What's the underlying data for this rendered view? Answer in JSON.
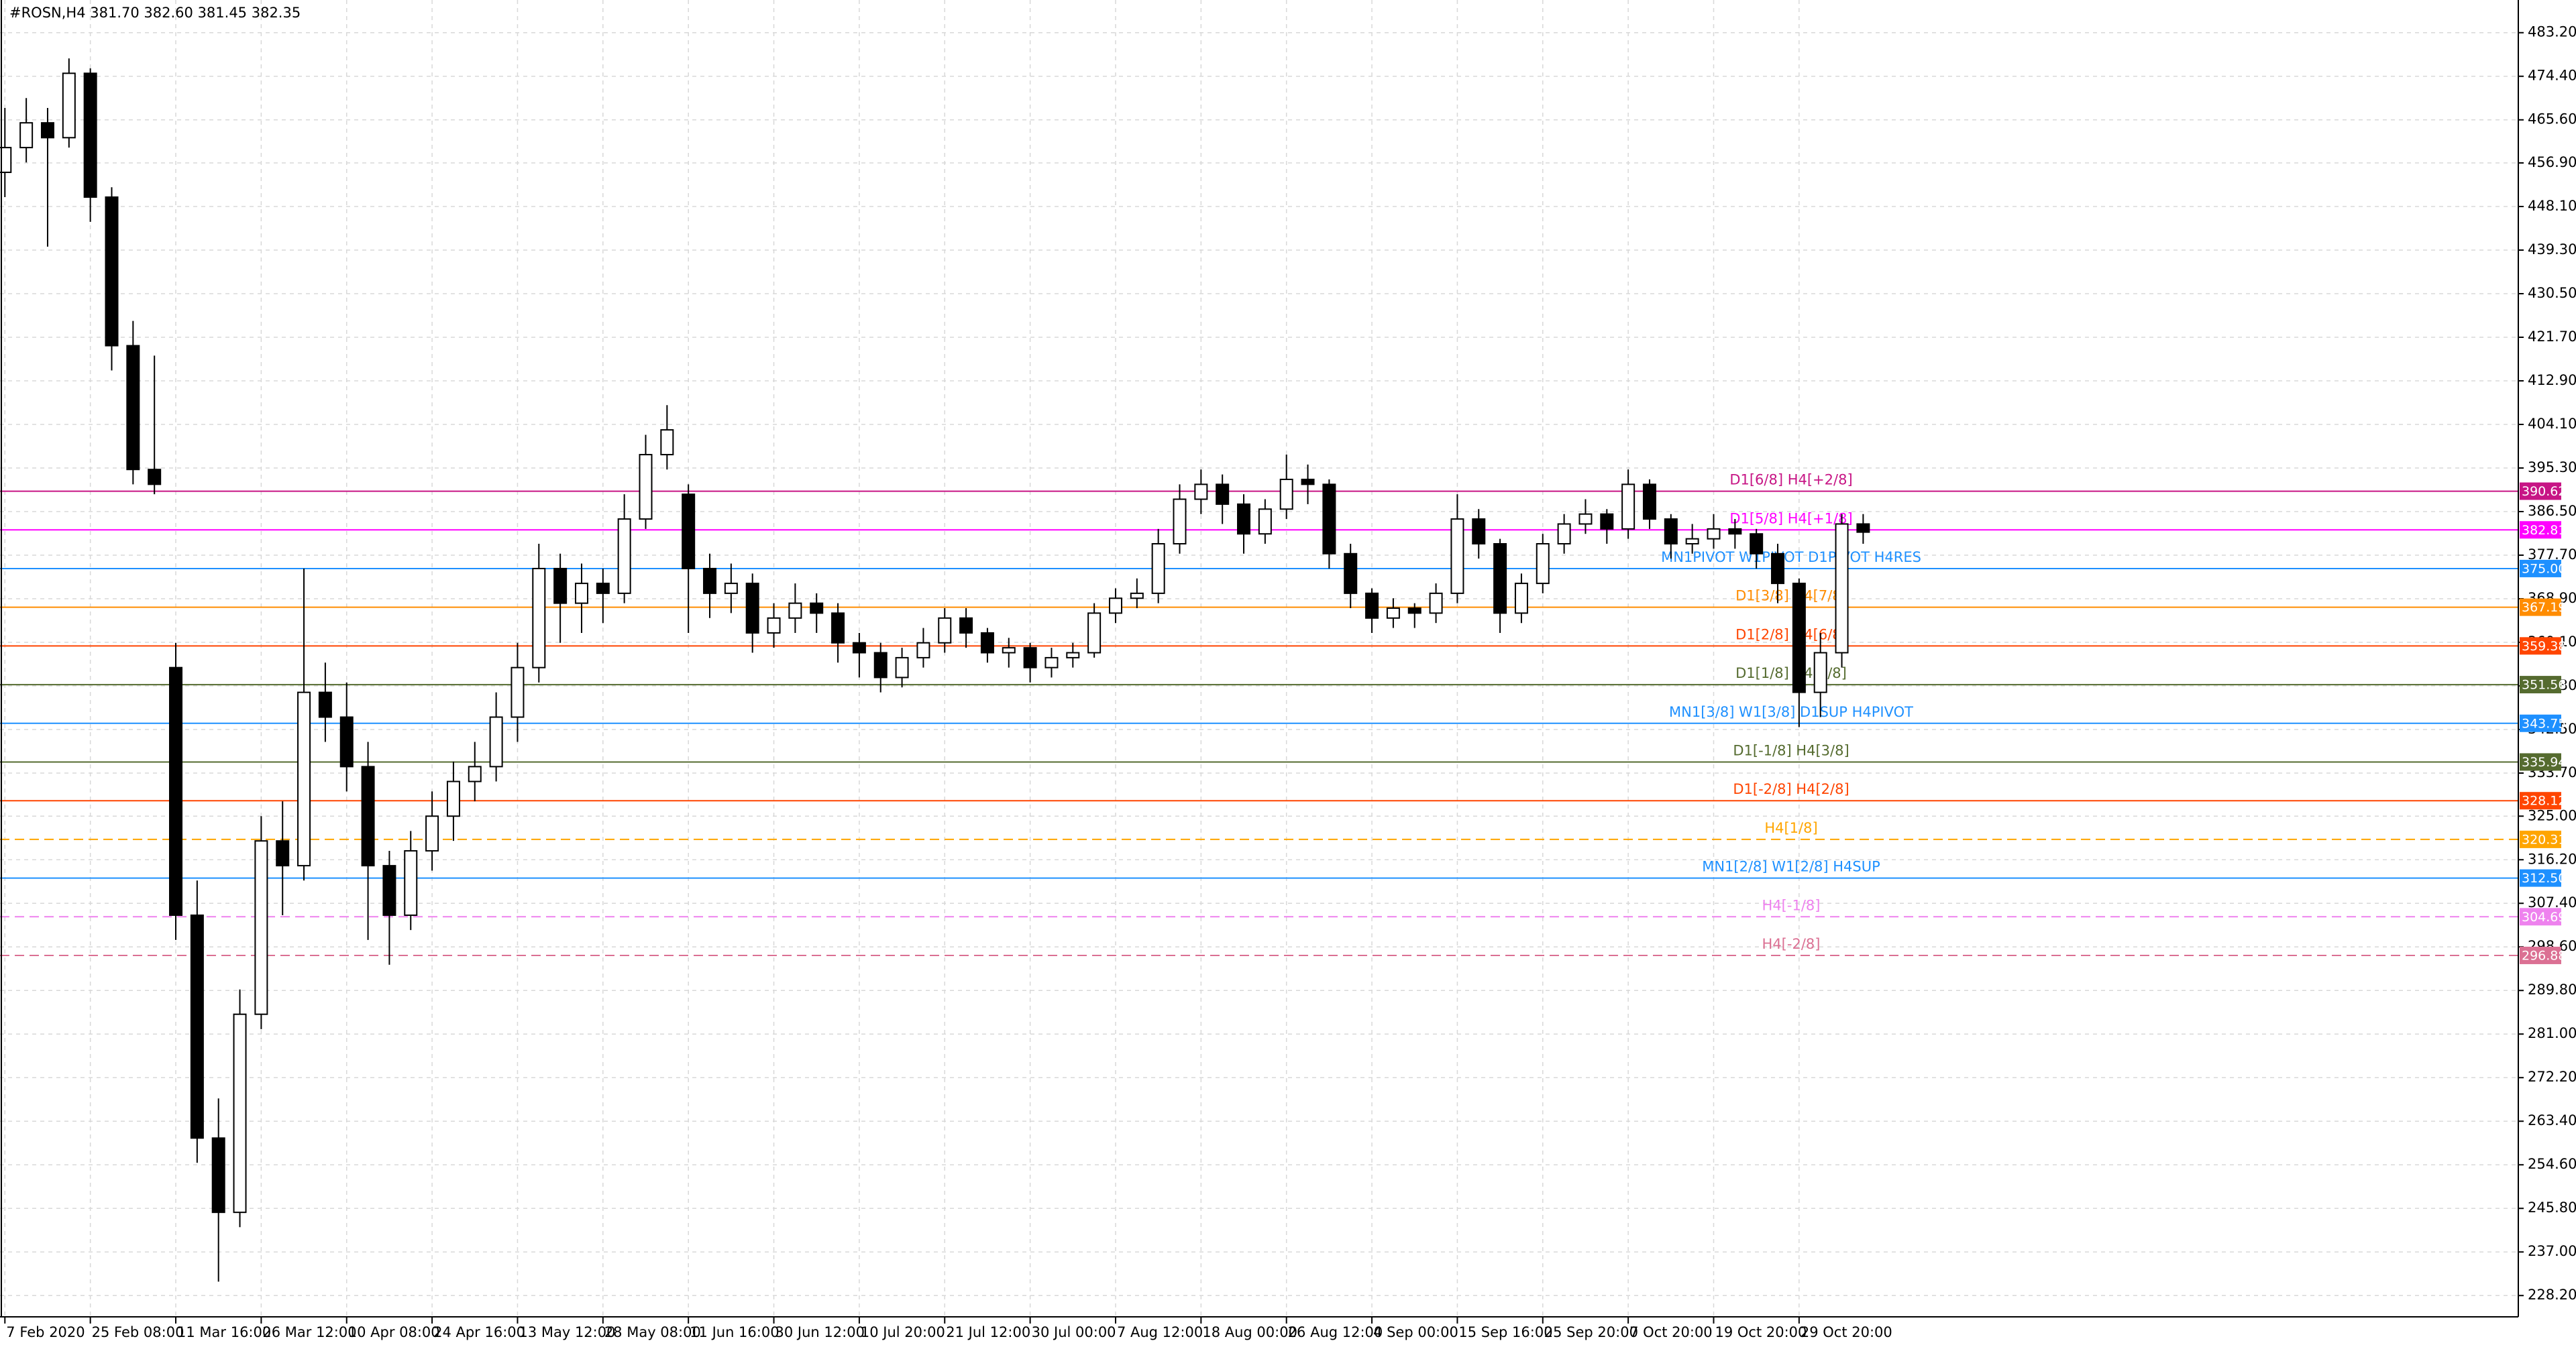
{
  "chart_data": {
    "type": "candlestick",
    "title": "#ROSN,H4  381.70 382.60 381.45 382.35",
    "categories": [
      "7 Feb 2020",
      null,
      null,
      null,
      "25 Feb 08:00",
      null,
      null,
      null,
      "11 Mar 16:00",
      null,
      null,
      null,
      "26 Mar 12:00",
      null,
      null,
      null,
      "10 Apr 08:00",
      null,
      null,
      null,
      "24 Apr 16:00",
      null,
      null,
      null,
      "13 May 12:00",
      null,
      null,
      null,
      "28 May 08:00",
      null,
      null,
      null,
      "11 Jun 16:00",
      null,
      null,
      null,
      "30 Jun 12:00",
      null,
      null,
      null,
      "10 Jul 20:00",
      null,
      null,
      null,
      "21 Jul 12:00",
      null,
      null,
      null,
      "30 Jul 00:00",
      null,
      null,
      null,
      "7 Aug 12:00",
      null,
      null,
      null,
      "18 Aug 00:00",
      null,
      null,
      null,
      "26 Aug 12:00",
      null,
      null,
      null,
      "4 Sep 00:00",
      null,
      null,
      null,
      "15 Sep 16:00",
      null,
      null,
      null,
      "25 Sep 20:00",
      null,
      null,
      null,
      "7 Oct 20:00",
      null,
      null,
      null,
      "19 Oct 20:00",
      null,
      null,
      null,
      "29 Oct 20:00",
      null,
      null,
      null
    ],
    "candles": [
      [
        455,
        468,
        450,
        460
      ],
      [
        460,
        470,
        457,
        465
      ],
      [
        465,
        468,
        440,
        462
      ],
      [
        462,
        478,
        460,
        475
      ],
      [
        475,
        476,
        445,
        450
      ],
      [
        450,
        452,
        415,
        420
      ],
      [
        420,
        425,
        392,
        395
      ],
      [
        395,
        418,
        390,
        392
      ],
      [
        355,
        360,
        300,
        305
      ],
      [
        305,
        312,
        255,
        260
      ],
      [
        260,
        268,
        231,
        245
      ],
      [
        245,
        290,
        242,
        285
      ],
      [
        285,
        325,
        282,
        320
      ],
      [
        320,
        328,
        305,
        315
      ],
      [
        315,
        375,
        312,
        350
      ],
      [
        350,
        356,
        340,
        345
      ],
      [
        345,
        352,
        330,
        335
      ],
      [
        335,
        340,
        300,
        315
      ],
      [
        315,
        318,
        295,
        305
      ],
      [
        305,
        322,
        302,
        318
      ],
      [
        318,
        330,
        314,
        325
      ],
      [
        325,
        336,
        320,
        332
      ],
      [
        332,
        340,
        328,
        335
      ],
      [
        335,
        350,
        332,
        345
      ],
      [
        345,
        360,
        340,
        355
      ],
      [
        355,
        380,
        352,
        375
      ],
      [
        375,
        378,
        360,
        368
      ],
      [
        368,
        376,
        362,
        372
      ],
      [
        372,
        375,
        364,
        370
      ],
      [
        370,
        390,
        368,
        385
      ],
      [
        385,
        402,
        383,
        398
      ],
      [
        398,
        408,
        395,
        403
      ],
      [
        390,
        392,
        362,
        375
      ],
      [
        375,
        378,
        365,
        370
      ],
      [
        370,
        376,
        366,
        372
      ],
      [
        372,
        374,
        358,
        362
      ],
      [
        362,
        368,
        359,
        365
      ],
      [
        365,
        372,
        362,
        368
      ],
      [
        368,
        370,
        362,
        366
      ],
      [
        366,
        368,
        356,
        360
      ],
      [
        360,
        362,
        353,
        358
      ],
      [
        358,
        360,
        350,
        353
      ],
      [
        353,
        359,
        351,
        357
      ],
      [
        357,
        363,
        355,
        360
      ],
      [
        360,
        367,
        358,
        365
      ],
      [
        365,
        367,
        359,
        362
      ],
      [
        362,
        363,
        356,
        358
      ],
      [
        358,
        361,
        355,
        359
      ],
      [
        359,
        360,
        352,
        355
      ],
      [
        355,
        359,
        353,
        357
      ],
      [
        357,
        360,
        355,
        358
      ],
      [
        358,
        368,
        357,
        366
      ],
      [
        366,
        371,
        364,
        369
      ],
      [
        369,
        373,
        367,
        370
      ],
      [
        370,
        383,
        368,
        380
      ],
      [
        380,
        392,
        378,
        389
      ],
      [
        389,
        395,
        386,
        392
      ],
      [
        392,
        394,
        384,
        388
      ],
      [
        388,
        390,
        378,
        382
      ],
      [
        382,
        389,
        380,
        387
      ],
      [
        387,
        398,
        385,
        393
      ],
      [
        393,
        396,
        388,
        392
      ],
      [
        392,
        393,
        375,
        378
      ],
      [
        378,
        380,
        367,
        370
      ],
      [
        370,
        371,
        362,
        365
      ],
      [
        365,
        369,
        363,
        367
      ],
      [
        367,
        368,
        363,
        366
      ],
      [
        366,
        372,
        364,
        370
      ],
      [
        370,
        390,
        368,
        385
      ],
      [
        385,
        387,
        377,
        380
      ],
      [
        380,
        381,
        362,
        366
      ],
      [
        366,
        374,
        364,
        372
      ],
      [
        372,
        382,
        370,
        380
      ],
      [
        380,
        386,
        378,
        384
      ],
      [
        384,
        389,
        382,
        386
      ],
      [
        386,
        387,
        380,
        383
      ],
      [
        383,
        395,
        381,
        392
      ],
      [
        392,
        393,
        383,
        385
      ],
      [
        385,
        386,
        377,
        380
      ],
      [
        380,
        384,
        378,
        381
      ],
      [
        381,
        386,
        379,
        383
      ],
      [
        383,
        385,
        379,
        382
      ],
      [
        382,
        383,
        375,
        378
      ],
      [
        378,
        380,
        368,
        372
      ],
      [
        372,
        373,
        343,
        350
      ],
      [
        350,
        362,
        345,
        358
      ],
      [
        358,
        386,
        355,
        384
      ],
      [
        384,
        386,
        380,
        382.35
      ]
    ],
    "up_color": "#ffffff",
    "down_color": "#000000",
    "ylim": [
      223.9,
      489.8
    ],
    "yticks": [
      {
        "value": 483.2,
        "label": "483.20"
      },
      {
        "value": 474.4,
        "label": "474.40"
      },
      {
        "value": 465.6,
        "label": "465.60"
      },
      {
        "value": 456.9,
        "label": "456.90"
      },
      {
        "value": 448.1,
        "label": "448.10"
      },
      {
        "value": 439.3,
        "label": "439.30"
      },
      {
        "value": 430.5,
        "label": "430.50"
      },
      {
        "value": 421.7,
        "label": "421.70"
      },
      {
        "value": 412.9,
        "label": "412.90"
      },
      {
        "value": 404.1,
        "label": "404.10"
      },
      {
        "value": 395.3,
        "label": "395.30"
      },
      {
        "value": 386.5,
        "label": "386.50"
      },
      {
        "value": 377.7,
        "label": "377.70"
      },
      {
        "value": 368.9,
        "label": "368.90"
      },
      {
        "value": 360.1,
        "label": "360.10"
      },
      {
        "value": 351.3,
        "label": "351.30"
      },
      {
        "value": 342.5,
        "label": "342.50"
      },
      {
        "value": 333.7,
        "label": "333.70"
      },
      {
        "value": 325,
        "label": "325.00"
      },
      {
        "value": 316.2,
        "label": "316.20"
      },
      {
        "value": 307.4,
        "label": "307.40"
      },
      {
        "value": 298.6,
        "label": "298.60"
      },
      {
        "value": 289.8,
        "label": "289.80"
      },
      {
        "value": 281,
        "label": "281.00"
      },
      {
        "value": 272.2,
        "label": "272.20"
      },
      {
        "value": 263.4,
        "label": "263.40"
      },
      {
        "value": 254.6,
        "label": "254.60"
      },
      {
        "value": 245.8,
        "label": "245.80"
      },
      {
        "value": 237,
        "label": "237.00"
      },
      {
        "value": 228.2,
        "label": "228.20"
      }
    ],
    "grid": true,
    "levels": [
      {
        "value": 390.62,
        "value_label": "390.62",
        "label": "D1[6/8] H4[+2/8]",
        "color": "#c71585",
        "dashed": false
      },
      {
        "value": 382.81,
        "value_label": "382.81",
        "label": "D1[5/8] H4[+1/8]",
        "color": "#ff00ff",
        "dashed": false
      },
      {
        "value": 375,
        "value_label": "375.00",
        "label": "MN1PIVOT W1PIVOT D1PIVOT H4RES",
        "color": "#1e90ff",
        "dashed": false
      },
      {
        "value": 367.19,
        "value_label": "367.19",
        "label": "D1[3/8] H4[7/8]",
        "color": "#ff8c00",
        "dashed": false
      },
      {
        "value": 359.38,
        "value_label": "359.38",
        "label": "D1[2/8] H4[6/8]",
        "color": "#ff4500",
        "dashed": false
      },
      {
        "value": 351.56,
        "value_label": "351.56",
        "label": "D1[1/8] H4[5/8]",
        "color": "#556b2f",
        "dashed": false
      },
      {
        "value": 343.75,
        "value_label": "343.75",
        "label": "MN1[3/8] W1[3/8] D1SUP H4PIVOT",
        "color": "#1e90ff",
        "dashed": false
      },
      {
        "value": 335.94,
        "value_label": "335.94",
        "label": "D1[-1/8] H4[3/8]",
        "color": "#556b2f",
        "dashed": false
      },
      {
        "value": 328.12,
        "value_label": "328.12",
        "label": "D1[-2/8] H4[2/8]",
        "color": "#ff4500",
        "dashed": false
      },
      {
        "value": 320.31,
        "value_label": "320.31",
        "label": "H4[1/8]",
        "color": "#ffa500",
        "dashed": true
      },
      {
        "value": 312.5,
        "value_label": "312.50",
        "label": "MN1[2/8] W1[2/8] H4SUP",
        "color": "#1e90ff",
        "dashed": false
      },
      {
        "value": 304.69,
        "value_label": "304.69",
        "label": "H4[-1/8]",
        "color": "#ee82ee",
        "dashed": true
      },
      {
        "value": 296.88,
        "value_label": "296.88",
        "label": "H4[-2/8]",
        "color": "#db7093",
        "dashed": true
      }
    ]
  }
}
